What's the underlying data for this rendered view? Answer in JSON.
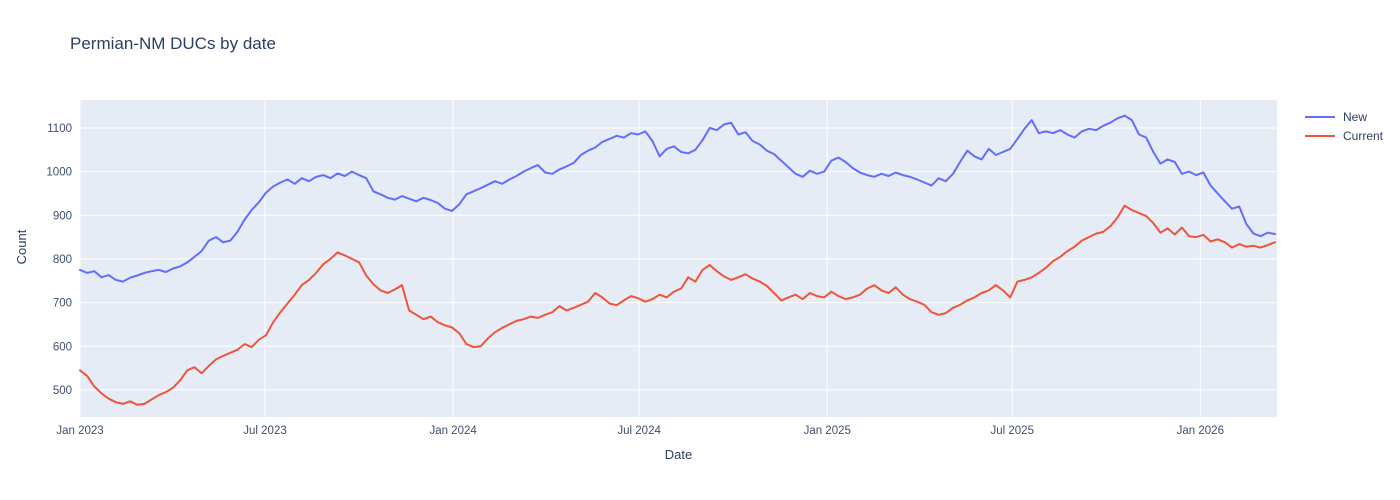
{
  "chart_data": {
    "type": "line",
    "title": "Permian-NM DUCs by date",
    "xlabel": "Date",
    "ylabel": "Count",
    "x_start_date": "2023-01-01",
    "x_step_days": 7,
    "x_range_days": [
      0,
      1171
    ],
    "ylim": [
      438,
      1164
    ],
    "yticks": [
      500,
      600,
      700,
      800,
      900,
      1000,
      1100
    ],
    "xticks": [
      {
        "label": "Jan 2023",
        "day": 0
      },
      {
        "label": "Jul 2023",
        "day": 181
      },
      {
        "label": "Jan 2024",
        "day": 365
      },
      {
        "label": "Jul 2024",
        "day": 547
      },
      {
        "label": "Jan 2025",
        "day": 731
      },
      {
        "label": "Jul 2025",
        "day": 912
      },
      {
        "label": "Jan 2026",
        "day": 1096
      }
    ],
    "grid": true,
    "legend_position": "outside-top-right",
    "plot_bg": "#e5ecf6",
    "grid_color": "#ffffff",
    "series": [
      {
        "name": "New",
        "color": "#636efa",
        "values": [
          775,
          768,
          772,
          758,
          763,
          752,
          748,
          757,
          762,
          768,
          772,
          775,
          770,
          778,
          783,
          792,
          805,
          818,
          842,
          850,
          838,
          842,
          862,
          890,
          912,
          930,
          952,
          966,
          975,
          982,
          972,
          985,
          978,
          988,
          992,
          985,
          996,
          990,
          1000,
          992,
          985,
          955,
          948,
          940,
          936,
          944,
          938,
          932,
          940,
          935,
          928,
          915,
          910,
          925,
          948,
          955,
          962,
          970,
          978,
          972,
          982,
          990,
          1000,
          1008,
          1015,
          998,
          995,
          1005,
          1012,
          1020,
          1038,
          1048,
          1055,
          1068,
          1075,
          1082,
          1078,
          1088,
          1085,
          1092,
          1070,
          1035,
          1052,
          1058,
          1045,
          1042,
          1050,
          1072,
          1100,
          1095,
          1108,
          1112,
          1085,
          1090,
          1070,
          1062,
          1048,
          1040,
          1025,
          1010,
          995,
          988,
          1002,
          995,
          1000,
          1025,
          1032,
          1022,
          1008,
          998,
          992,
          988,
          995,
          990,
          998,
          992,
          988,
          982,
          975,
          968,
          985,
          978,
          995,
          1022,
          1048,
          1035,
          1028,
          1052,
          1038,
          1045,
          1052,
          1075,
          1098,
          1118,
          1088,
          1092,
          1088,
          1095,
          1085,
          1078,
          1092,
          1098,
          1095,
          1105,
          1112,
          1122,
          1128,
          1118,
          1085,
          1078,
          1045,
          1018,
          1028,
          1022,
          995,
          1000,
          992,
          998,
          968,
          950,
          932,
          915,
          920,
          880,
          858,
          852,
          860,
          857
        ]
      },
      {
        "name": "Current",
        "color": "#ef553b",
        "values": [
          545,
          532,
          508,
          492,
          480,
          472,
          468,
          474,
          466,
          468,
          478,
          488,
          495,
          505,
          522,
          545,
          552,
          538,
          555,
          570,
          578,
          585,
          592,
          605,
          598,
          615,
          625,
          655,
          678,
          698,
          718,
          740,
          752,
          768,
          788,
          800,
          815,
          808,
          800,
          792,
          762,
          742,
          728,
          722,
          730,
          740,
          682,
          672,
          662,
          668,
          655,
          648,
          643,
          630,
          605,
          598,
          600,
          618,
          632,
          642,
          650,
          658,
          662,
          668,
          665,
          672,
          678,
          692,
          682,
          688,
          695,
          702,
          722,
          712,
          698,
          694,
          705,
          715,
          710,
          702,
          708,
          718,
          712,
          725,
          732,
          758,
          748,
          775,
          786,
          772,
          760,
          752,
          758,
          765,
          755,
          748,
          738,
          722,
          705,
          712,
          718,
          708,
          722,
          715,
          712,
          725,
          715,
          708,
          712,
          718,
          732,
          740,
          728,
          722,
          735,
          718,
          708,
          702,
          695,
          678,
          672,
          676,
          688,
          695,
          705,
          712,
          722,
          728,
          740,
          728,
          712,
          748,
          752,
          758,
          768,
          780,
          795,
          805,
          818,
          828,
          842,
          850,
          858,
          862,
          875,
          895,
          922,
          912,
          905,
          898,
          882,
          860,
          870,
          856,
          872,
          852,
          850,
          855,
          840,
          845,
          838,
          826,
          834,
          828,
          830,
          826,
          832,
          838
        ]
      }
    ]
  }
}
